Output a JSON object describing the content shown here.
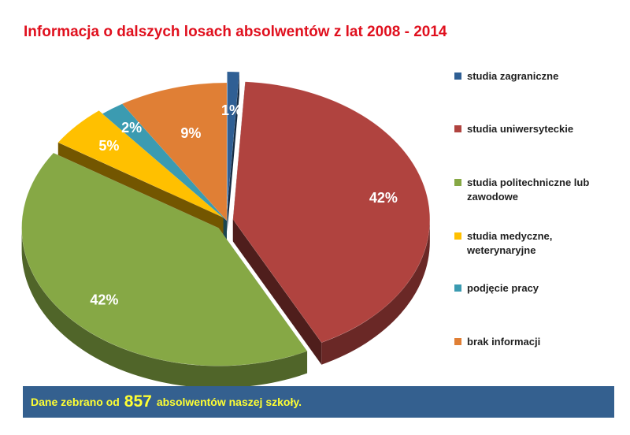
{
  "title": "Informacja o dalszych losach absolwentów z lat 2008 - 2014",
  "chart_data": {
    "type": "pie",
    "title": "Informacja o dalszych losach absolwentów z lat 2008 - 2014",
    "legend_position": "right",
    "series": [
      {
        "label": "studia zagraniczne",
        "value": 1,
        "value_label": "1%",
        "color": "#2f5f94"
      },
      {
        "label": "studia uniwersyteckie",
        "value": 42,
        "value_label": "42%",
        "color": "#b0433f"
      },
      {
        "label": "studia politechniczne lub zawodowe",
        "value": 42,
        "value_label": "42%",
        "color": "#86a845"
      },
      {
        "label": "studia medyczne, weterynaryjne",
        "value": 5,
        "value_label": "5%",
        "color": "#ffc000"
      },
      {
        "label": "podjęcie pracy",
        "value": 2,
        "value_label": "2%",
        "color": "#3b9bb1"
      },
      {
        "label": "brak informacji",
        "value": 9,
        "value_label": "9%",
        "color": "#e07f35"
      }
    ]
  },
  "footer": {
    "prefix": "Dane zebrano od",
    "count": "857",
    "suffix": "absolwentów naszej szkoły."
  }
}
